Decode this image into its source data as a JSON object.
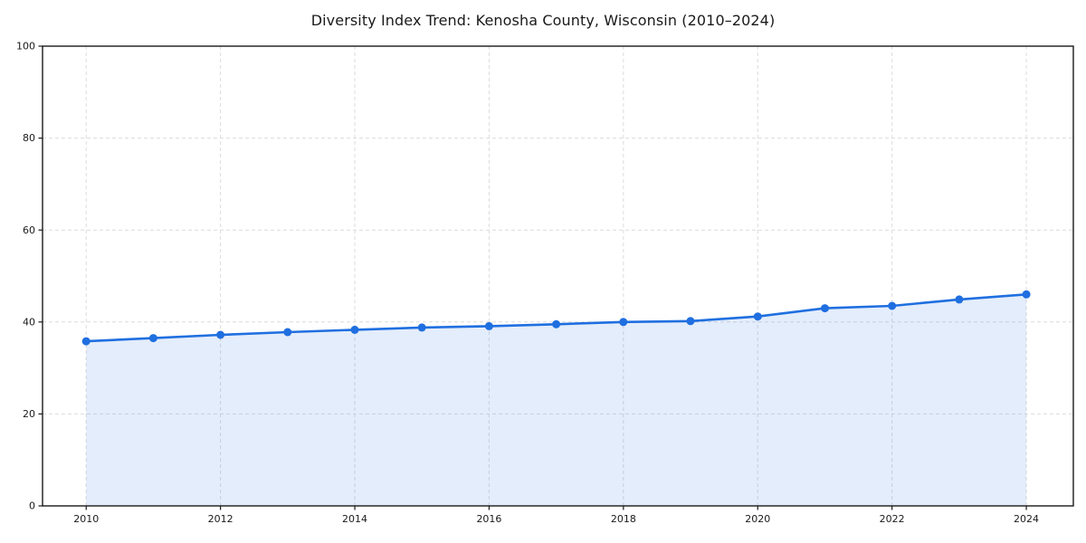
{
  "chart_data": {
    "type": "line",
    "title": "Diversity Index Trend: Kenosha County, Wisconsin (2010–2024)",
    "x": [
      2010,
      2011,
      2012,
      2013,
      2014,
      2015,
      2016,
      2017,
      2018,
      2019,
      2020,
      2021,
      2022,
      2023,
      2024
    ],
    "series": [
      {
        "name": "Diversity Index",
        "values": [
          35.8,
          36.5,
          37.2,
          37.8,
          38.3,
          38.8,
          39.1,
          39.5,
          40.0,
          40.2,
          41.2,
          43.0,
          43.5,
          44.9,
          46.0
        ]
      }
    ],
    "xlabel": "",
    "ylabel": "",
    "xlim": [
      2009.35,
      2024.7
    ],
    "ylim": [
      0,
      100
    ],
    "xticks": [
      2010,
      2012,
      2014,
      2016,
      2018,
      2020,
      2022,
      2024
    ],
    "yticks": [
      0,
      20,
      40,
      60,
      80,
      100
    ],
    "grid": {
      "visible": true,
      "style": "dashed",
      "on_x": true,
      "on_y": true
    },
    "legend": "none",
    "area_fill": true,
    "markers": true,
    "colors": {
      "line": "#1f6fe0",
      "fill": "rgba(31,111,224,0.12)",
      "grid": "#dcdcdc",
      "axis": "#1a1a1a",
      "text": "#1a1a1a",
      "background": "#ffffff"
    }
  }
}
